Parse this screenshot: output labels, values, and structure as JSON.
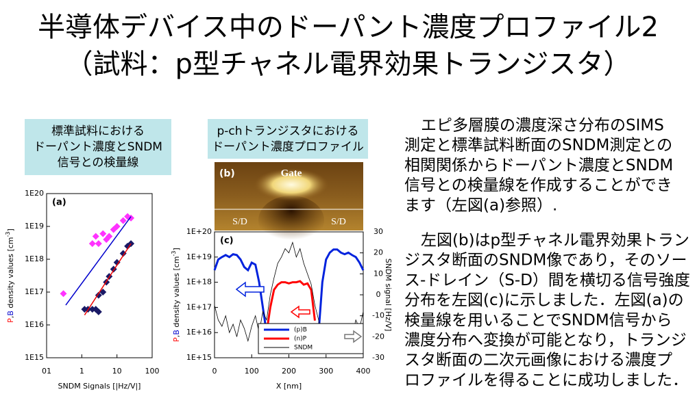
{
  "title": {
    "lines": [
      "半導体デバイス中のドーパント濃度プロファイル2",
      "（試料：p型チャネル電界効果トランジスタ）"
    ]
  },
  "left_caption": {
    "lines": [
      "標準試料における",
      "ドーパント濃度とSNDM",
      "信号との検量線"
    ]
  },
  "middle_caption": {
    "lines": [
      "p-chトランジスタにおける",
      "ドーパント濃度プロファイル"
    ]
  },
  "body": {
    "paragraphs": [
      [
        "エピ多層膜の濃度深さ分布のSIMS",
        "測定と標準試料断面のSNDM測定との",
        "相関関係からドーパント濃度とSNDM",
        "信号との検量線を作成することができ",
        "ます（左図(a)参照）."
      ],
      [
        "左図(b)はp型チャネル電界効果トラン",
        "ジスタ断面のSNDM像であり，そのソー",
        "ス-ドレイン（S-D）間を横切る信号強度",
        "分布を左図(c)に示しました．左図(a)の",
        "検量線を用いることでSNDM信号から",
        "濃度分布へ変換が可能となり，トランジ",
        "スタ断面の二次元画像における濃度プ",
        "ロファイルを得ることに成功しました．"
      ]
    ]
  },
  "image_b": {
    "label": "(b)",
    "gate": "Gate",
    "source": "S/D",
    "drain": "S/D"
  },
  "chart_data": [
    {
      "type": "scatter",
      "label": "(a)",
      "xlabel": "SNDM Signals [|Hz/V|]",
      "ylabel_parts": [
        "P",
        ",",
        "B",
        " density values [cm",
        "-3",
        "]"
      ],
      "log_x": true,
      "log_y": true,
      "xlim": [
        0.1,
        100
      ],
      "ylim": [
        1000000000000000.0,
        1e+20
      ],
      "xticks": [
        {
          "value": 0.1,
          "label": "01"
        },
        1,
        10,
        100
      ],
      "yticks": [
        {
          "value": 1000000000000000.0,
          "label": "1E15"
        },
        {
          "value": 1e+16,
          "label": "1E16"
        },
        {
          "value": 1e+17,
          "label": "1E17"
        },
        {
          "value": 1e+18,
          "label": "1E18"
        },
        {
          "value": 1e+19,
          "label": "1E19"
        },
        {
          "value": 1e+20,
          "label": "1E20"
        }
      ],
      "series": [
        {
          "color": "#ff33ff",
          "x": [
            0.3,
            2,
            2.5,
            3,
            4,
            5,
            6,
            8,
            10,
            15,
            20,
            25
          ],
          "values": [
            9e+16,
            3e+18,
            5e+18,
            3e+18,
            6e+18,
            4e+18,
            5e+18,
            8e+18,
            1e+19,
            1.5e+19,
            2e+19,
            1.8e+19
          ]
        },
        {
          "color": "#1a1a66",
          "x": [
            1.2,
            1.5,
            2,
            2.5,
            3,
            3,
            4,
            5,
            6,
            8,
            10,
            15,
            20,
            25
          ],
          "values": [
            3e+16,
            3e+16,
            3e+16,
            3e+16,
            2.5e+16,
            8e+16,
            1e+17,
            2e+17,
            3e+17,
            5e+17,
            8e+17,
            1.5e+18,
            2.5e+18,
            3e+18
          ]
        }
      ],
      "fits": [
        {
          "color": "#0000cc",
          "x": [
            0.35,
            25
          ],
          "values": [
            4e+16,
            2e+19
          ]
        },
        {
          "color": "#ee0000",
          "x": [
            1.2,
            25
          ],
          "values": [
            2e+16,
            3e+18
          ]
        }
      ]
    },
    {
      "type": "line",
      "label": "(c)",
      "xlabel": "X [nm]",
      "ylabel_parts": [
        "P",
        ",",
        "B",
        " density values [cm",
        "-3",
        "]"
      ],
      "y2label": "SNDM signal [Hz/V]",
      "log_y": true,
      "xlim": [
        0,
        400
      ],
      "ylim": [
        1000000000000000.0,
        1e+20
      ],
      "y2lim": [
        -30,
        30
      ],
      "xticks": [
        0,
        100,
        200,
        300,
        400
      ],
      "yticks": [
        {
          "value": 1000000000000000.0,
          "label": "1E+15"
        },
        {
          "value": 1e+16,
          "label": "1E+16"
        },
        {
          "value": 1e+17,
          "label": "1E+17"
        },
        {
          "value": 1e+18,
          "label": "1E+18"
        },
        {
          "value": 1e+19,
          "label": "1E+19"
        },
        {
          "value": 1e+20,
          "label": "1E+20"
        }
      ],
      "y2ticks": [
        -30,
        -20,
        -10,
        0,
        10,
        20,
        30
      ],
      "legend": "lower right",
      "x": [
        0,
        10,
        20,
        30,
        40,
        50,
        60,
        70,
        80,
        90,
        100,
        110,
        120,
        130,
        140,
        150,
        160,
        170,
        180,
        190,
        200,
        210,
        220,
        230,
        240,
        250,
        260,
        270,
        280,
        290,
        300,
        310,
        320,
        330,
        340,
        350,
        360,
        370,
        380,
        390,
        400
      ],
      "series": [
        {
          "name": "(p)B",
          "color": "#0022dd",
          "values": [
            3e+18,
            8e+18,
            1e+19,
            1.2e+19,
            1e+19,
            1.3e+19,
            1.2e+19,
            8e+18,
            4e+18,
            3e+18,
            6e+18,
            5e+18,
            1e+18,
            1e+17,
            1e+16,
            null,
            null,
            null,
            null,
            null,
            null,
            null,
            null,
            null,
            null,
            null,
            null,
            null,
            1e+16,
            1e+18,
            8e+18,
            1.5e+19,
            2e+19,
            2e+19,
            1.5e+19,
            1.3e+19,
            1.5e+19,
            1.2e+19,
            1e+19,
            6e+18,
            3e+18
          ]
        },
        {
          "name": "(n)P",
          "color": "#ff0000",
          "values": [
            null,
            null,
            null,
            null,
            null,
            null,
            null,
            null,
            null,
            null,
            null,
            null,
            null,
            null,
            1e+16,
            1e+17,
            5e+17,
            8e+17,
            1e+18,
            1e+18,
            9e+17,
            1e+18,
            1e+18,
            1.1e+18,
            8e+17,
            9e+17,
            5e+17,
            3e+16,
            null,
            null,
            null,
            null,
            null,
            null,
            null,
            null,
            null,
            null,
            null,
            null,
            null
          ]
        },
        {
          "name": "SNDM",
          "color": "#000000",
          "axis": "y2",
          "values": [
            -5,
            -12,
            -15,
            -10,
            -18,
            -14,
            -20,
            -12,
            -16,
            -22,
            -15,
            -10,
            -18,
            -8,
            -12,
            0,
            8,
            15,
            18,
            22,
            20,
            25,
            18,
            22,
            15,
            10,
            5,
            -5,
            -12,
            -20,
            -25,
            -22,
            -28,
            -20,
            -24,
            -18,
            -15,
            -20,
            -12,
            -16,
            -8
          ]
        }
      ]
    }
  ]
}
